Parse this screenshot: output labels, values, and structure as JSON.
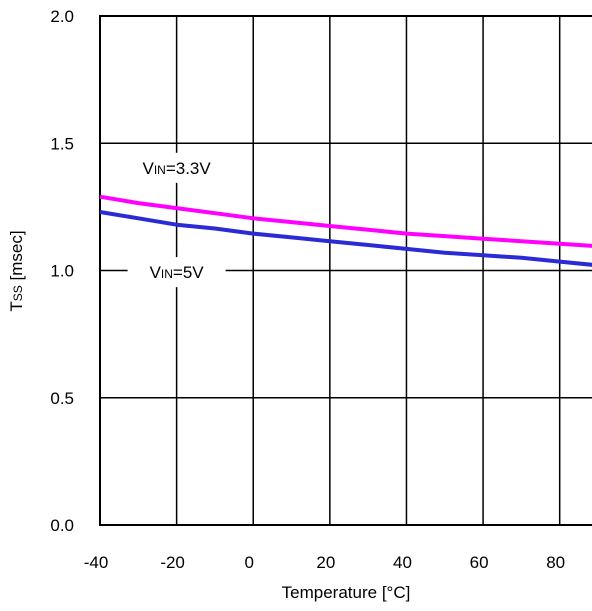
{
  "chart_data": {
    "type": "line",
    "xlabel": "Temperature [°C]",
    "ylabel": {
      "main": "T",
      "sub": "SS",
      "rest": " [msec]"
    },
    "xlim": [
      -40,
      90
    ],
    "ylim": [
      0.0,
      2.0
    ],
    "xticks": [
      -40,
      -20,
      0,
      20,
      40,
      60,
      80
    ],
    "xtick_labels": [
      "-40",
      "-20",
      "0",
      "20",
      "40",
      "60",
      "80"
    ],
    "yticks": [
      0.0,
      0.5,
      1.0,
      1.5,
      2.0
    ],
    "ytick_labels": [
      "0.0",
      "0.5",
      "1.0",
      "1.5",
      "2.0"
    ],
    "grid": true,
    "series": [
      {
        "name": "VIN=3.3V",
        "label": {
          "main": "V",
          "sub": "IN",
          "rest": "=3.3V"
        },
        "color": "#ff00ff",
        "x": [
          -40,
          -30,
          -20,
          -10,
          0,
          10,
          20,
          30,
          40,
          50,
          60,
          70,
          80,
          90
        ],
        "y": [
          1.29,
          1.265,
          1.245,
          1.225,
          1.205,
          1.19,
          1.175,
          1.16,
          1.145,
          1.135,
          1.125,
          1.115,
          1.105,
          1.095
        ]
      },
      {
        "name": "VIN=5V",
        "label": {
          "main": "V",
          "sub": "IN",
          "rest": "=5V"
        },
        "color": "#2b2bd6",
        "x": [
          -40,
          -30,
          -20,
          -10,
          0,
          10,
          20,
          30,
          40,
          50,
          60,
          70,
          80,
          90
        ],
        "y": [
          1.23,
          1.205,
          1.18,
          1.165,
          1.145,
          1.13,
          1.115,
          1.1,
          1.085,
          1.07,
          1.06,
          1.05,
          1.035,
          1.02
        ]
      }
    ]
  }
}
